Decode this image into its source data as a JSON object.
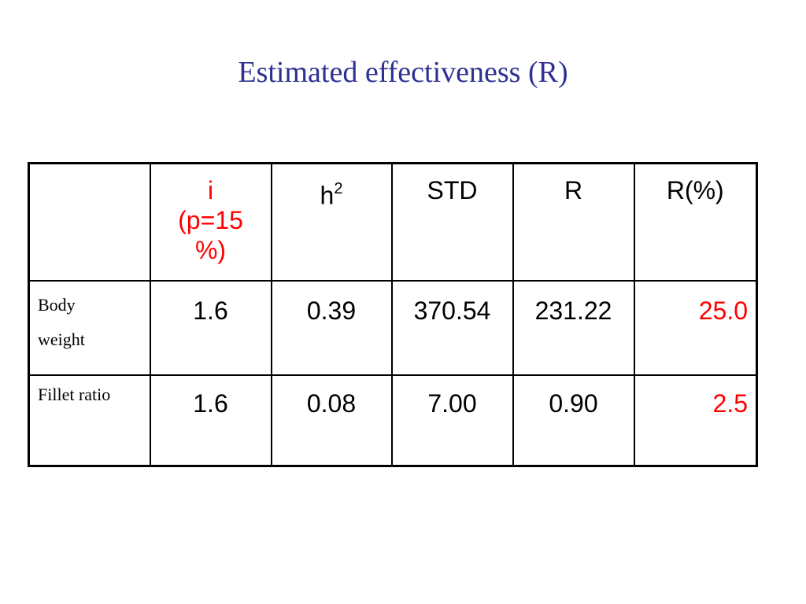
{
  "slide": {
    "title": "Estimated effectiveness (R)"
  },
  "table": {
    "headers": {
      "corner": "",
      "i_line1": "i",
      "i_line2": "(p=15",
      "i_line3": "%)",
      "h_base": "h",
      "h_sup": "2",
      "std": "STD",
      "r": "R",
      "r_pct": "R(%)"
    },
    "rows": [
      {
        "label_line1": "Body",
        "label_line2": "weight",
        "i": "1.6",
        "h2": "0.39",
        "std": "370.54",
        "r": "231.22",
        "r_pct": "25.0"
      },
      {
        "label_line1": "Fillet ratio",
        "label_line2": "",
        "i": "1.6",
        "h2": "0.08",
        "std": "7.00",
        "r": "0.90",
        "r_pct": "2.5"
      }
    ],
    "colors": {
      "title": "#2e3192",
      "highlight": "#ff0000",
      "border": "#000000"
    }
  }
}
